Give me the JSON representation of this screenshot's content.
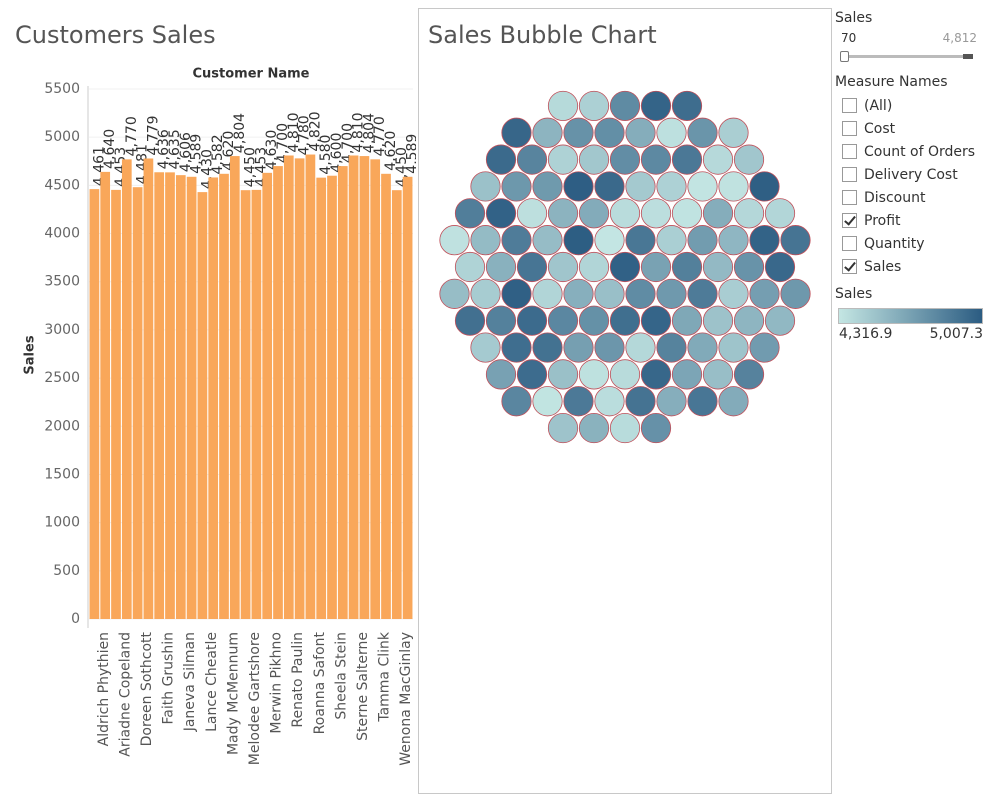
{
  "chart_data": [
    {
      "type": "bar",
      "title": "Customers Sales",
      "header": "Customer Name",
      "ylabel": "Sales",
      "color": "#f9a75a",
      "categories": [
        "Aldrich Phythien",
        null,
        "Ariadne Copeland",
        null,
        "Doreen Sothcott",
        null,
        "Faith Grushin",
        null,
        "Janeva Silman",
        null,
        "Lance Cheatle",
        null,
        "Mady McMennum",
        null,
        "Melodee Gartshore",
        null,
        "Merwin Pikhno",
        null,
        "Renato Paulin",
        null,
        "Roanna Safont",
        null,
        "Sheela Stein",
        null,
        "Sterne Salterne",
        null,
        "Tamma Clink",
        null,
        "Wenona MacGinlay",
        null
      ],
      "values": [
        4461,
        4640,
        4453,
        4770,
        4481,
        4779,
        4636,
        4635,
        4606,
        4589,
        4430,
        4582,
        4620,
        4804,
        4450,
        4453,
        4630,
        4700,
        4810,
        4780,
        4820,
        4580,
        4600,
        4700,
        4810,
        4804,
        4770,
        4620,
        4450,
        4589
      ],
      "value_labels": [
        "4,461",
        "4,640",
        "4,453",
        "4,770",
        "4,481",
        "4,779",
        "4,636",
        "4,635",
        "4,606",
        "4,589",
        "4,430",
        "4,582",
        "4,620",
        "4,804",
        "4,450",
        "4,453",
        "4,630",
        "4,700",
        "4,810",
        "4,780",
        "4,820",
        "4,580",
        "4,600",
        "4,700",
        "4,810",
        "4,804",
        "4,770",
        "4,620",
        "4,450",
        "4,589"
      ],
      "ylim": [
        0,
        5500
      ],
      "yticks": [
        0,
        500,
        1000,
        1500,
        2000,
        2500,
        3000,
        3500,
        4000,
        4500,
        5000,
        5500
      ],
      "grid": true
    },
    {
      "type": "bubble",
      "title": "Sales Bubble Chart",
      "values": [
        4981,
        4402,
        4655,
        4320,
        4870,
        4512,
        4766,
        4998,
        4433,
        4590,
        4701,
        4366,
        4912,
        4480,
        4829,
        4611,
        4355,
        4744,
        4960,
        4525,
        4688,
        4401,
        4850,
        4570,
        4333,
        4790,
        4629,
        4940,
        4460,
        4715,
        4388,
        4880,
        4540,
        4995,
        4420,
        4670,
        4812,
        4350,
        4601,
        4930,
        4495,
        4760,
        4372,
        4845,
        4555,
        4985,
        4440,
        4699,
        4326,
        4899,
        4617,
        4470,
        4780,
        4344,
        4952,
        4583,
        4730,
        4415,
        4865,
        4507,
        4640,
        4975,
        4390,
        4822,
        4560,
        4708,
        4337,
        4918,
        4489,
        4753,
        4600,
        4360,
        4890,
        4532,
        4970,
        4446,
        4675,
        4805,
        4381,
        4925,
        4515,
        4738,
        4348,
        4860,
        4595,
        4410,
        4945,
        4566,
        4722,
        4329,
        4875,
        4500,
        4990,
        4455,
        4690,
        4838,
        4396,
        4905,
        4548,
        4772,
        4369,
        4935,
        4475,
        4660,
        4815,
        4425,
        4965,
        4578,
        4740,
        4340,
        4885,
        4520,
        4705,
        4955,
        4435,
        4795,
        4610,
        4378,
        4920,
        4490
      ]
    },
    {
      "type": "color_legend",
      "title": "Sales",
      "min": 4316.9,
      "max": 5007.3,
      "min_label": "4,316.9",
      "max_label": "5,007.3",
      "colors": [
        "#c4e6e3",
        "#2b5c82"
      ]
    }
  ],
  "filters": {
    "sales_range": {
      "title": "Sales",
      "min": 70,
      "max": 4812,
      "min_label": "70",
      "max_label": "4,812"
    },
    "measure_names": {
      "title": "Measure Names",
      "items": [
        {
          "label": "(All)",
          "checked": false
        },
        {
          "label": "Cost",
          "checked": false
        },
        {
          "label": "Count of Orders",
          "checked": false
        },
        {
          "label": "Delivery Cost",
          "checked": false
        },
        {
          "label": "Discount",
          "checked": false
        },
        {
          "label": "Profit",
          "checked": true
        },
        {
          "label": "Quantity",
          "checked": false
        },
        {
          "label": "Sales",
          "checked": true
        }
      ]
    }
  }
}
